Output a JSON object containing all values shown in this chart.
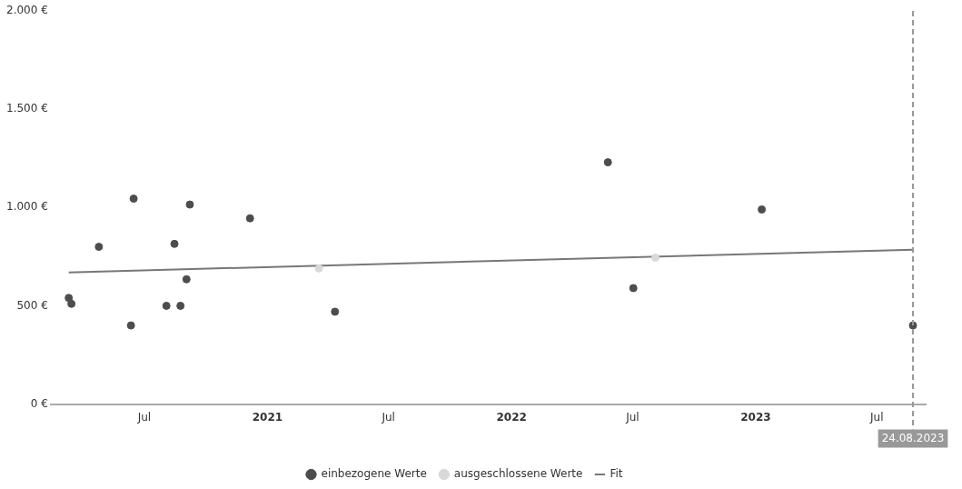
{
  "chart_data": {
    "type": "scatter",
    "series": [
      {
        "name": "einbezogene Werte",
        "color": "#4d4d4d",
        "x": [
          "2020-03-10",
          "2020-03-14",
          "2020-04-24",
          "2020-06-15",
          "2020-06-11",
          "2020-08-03",
          "2020-08-15",
          "2020-08-24",
          "2020-09-02",
          "2020-09-07",
          "2020-12-06",
          "2021-04-12",
          "2022-05-25",
          "2022-07-02",
          "2023-01-10",
          "2023-08-24"
        ],
        "values": [
          540,
          510,
          800,
          1045,
          400,
          500,
          815,
          500,
          635,
          1015,
          945,
          470,
          1230,
          590,
          990,
          400
        ]
      },
      {
        "name": "ausgeschlossene Werte",
        "color": "#d9d9d9",
        "x": [
          "2021-03-19",
          "2022-08-04"
        ],
        "values": [
          690,
          745
        ]
      },
      {
        "name": "Fit",
        "type": "line",
        "marker": "none",
        "color": "#777777",
        "x": [
          "2020-03-10",
          "2023-08-24"
        ],
        "values": [
          670,
          785
        ]
      }
    ],
    "xlim": [
      "2020-02-12",
      "2023-09-12"
    ],
    "xticks": [
      {
        "value": "2020-07-01",
        "label": "Jul"
      },
      {
        "value": "2021-01-01",
        "label": "2021"
      },
      {
        "value": "2021-07-01",
        "label": "Jul"
      },
      {
        "value": "2022-01-01",
        "label": "2022"
      },
      {
        "value": "2022-07-01",
        "label": "Jul"
      },
      {
        "value": "2023-01-01",
        "label": "2023"
      },
      {
        "value": "2023-07-01",
        "label": "Jul"
      }
    ],
    "ylim": [
      0,
      2000
    ],
    "yticks": [
      {
        "value": 0,
        "label": "0 €"
      },
      {
        "value": 500,
        "label": "500 €"
      },
      {
        "value": 1000,
        "label": "1.000 €"
      },
      {
        "value": 1500,
        "label": "1.500 €"
      },
      {
        "value": 2000,
        "label": "2.000 €"
      }
    ],
    "ref_lines": [
      {
        "axis": "x",
        "value": "2023-08-24",
        "label": "24.08.2023",
        "color": "#999999",
        "line_style": "dashed"
      }
    ],
    "grid": false,
    "legend": "bottom",
    "marker": "circle"
  }
}
